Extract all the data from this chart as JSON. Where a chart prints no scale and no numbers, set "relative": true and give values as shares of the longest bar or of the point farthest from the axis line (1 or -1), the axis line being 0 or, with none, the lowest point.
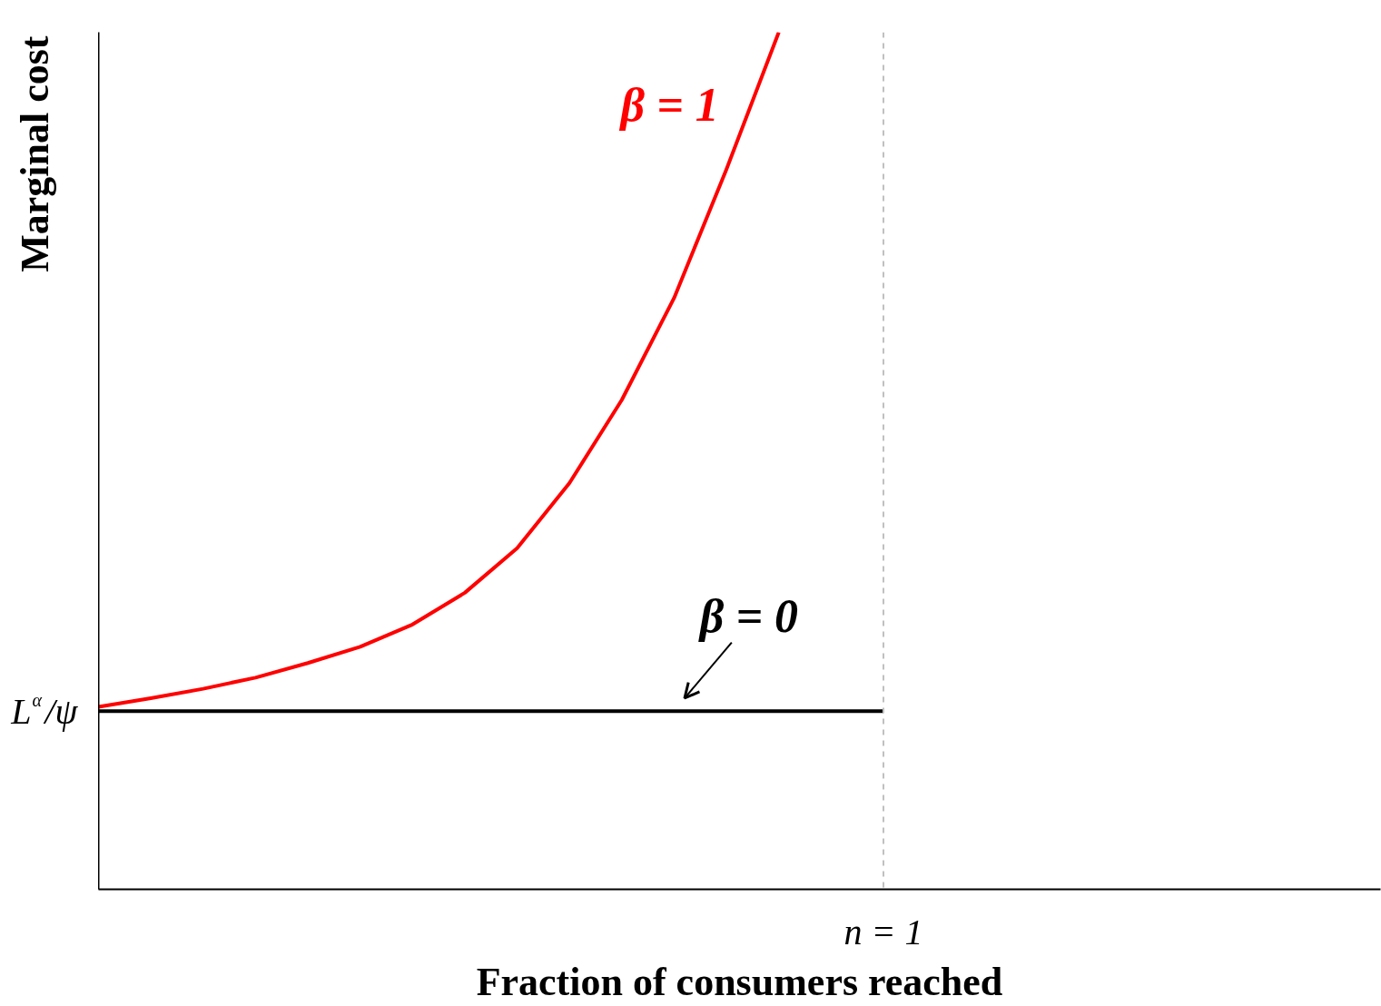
{
  "chart_data": {
    "type": "line",
    "relative": true,
    "xlabel": "Fraction of consumers reached",
    "ylabel": "Marginal cost",
    "categories": [
      null,
      null,
      null,
      null,
      null,
      null,
      null,
      null,
      null,
      null,
      null,
      null,
      null,
      null,
      null,
      null,
      null,
      null,
      null,
      null,
      null,
      null,
      null,
      null,
      null
    ],
    "series": [
      {
        "color": "#ff0000",
        "values": [
          0.213,
          0.223,
          0.234,
          0.247,
          0.264,
          0.283,
          0.309,
          0.346,
          0.398,
          0.474,
          0.571,
          0.69,
          0.84,
          1.0,
          null,
          null,
          null,
          null,
          null,
          null,
          null,
          null,
          null,
          null,
          null
        ]
      },
      {
        "color": "#000000",
        "values": [
          0.208,
          0.208,
          0.208,
          0.208,
          0.208,
          0.208,
          0.208,
          0.208,
          0.208,
          0.208,
          0.208,
          0.208,
          0.208,
          0.208,
          0.208,
          0.208,
          null,
          null,
          null,
          null,
          null,
          null,
          null,
          null,
          null
        ]
      }
    ],
    "ref_lines": [
      {
        "axis": "x",
        "label": "n = 1",
        "color": "#c0c0c0",
        "line_style": "dashed"
      }
    ],
    "annotations": [
      "β = 1",
      "β = 0",
      "L$^{α}$/ψ"
    ],
    "grid": false,
    "marker": "none",
    "line_style": "solid"
  }
}
